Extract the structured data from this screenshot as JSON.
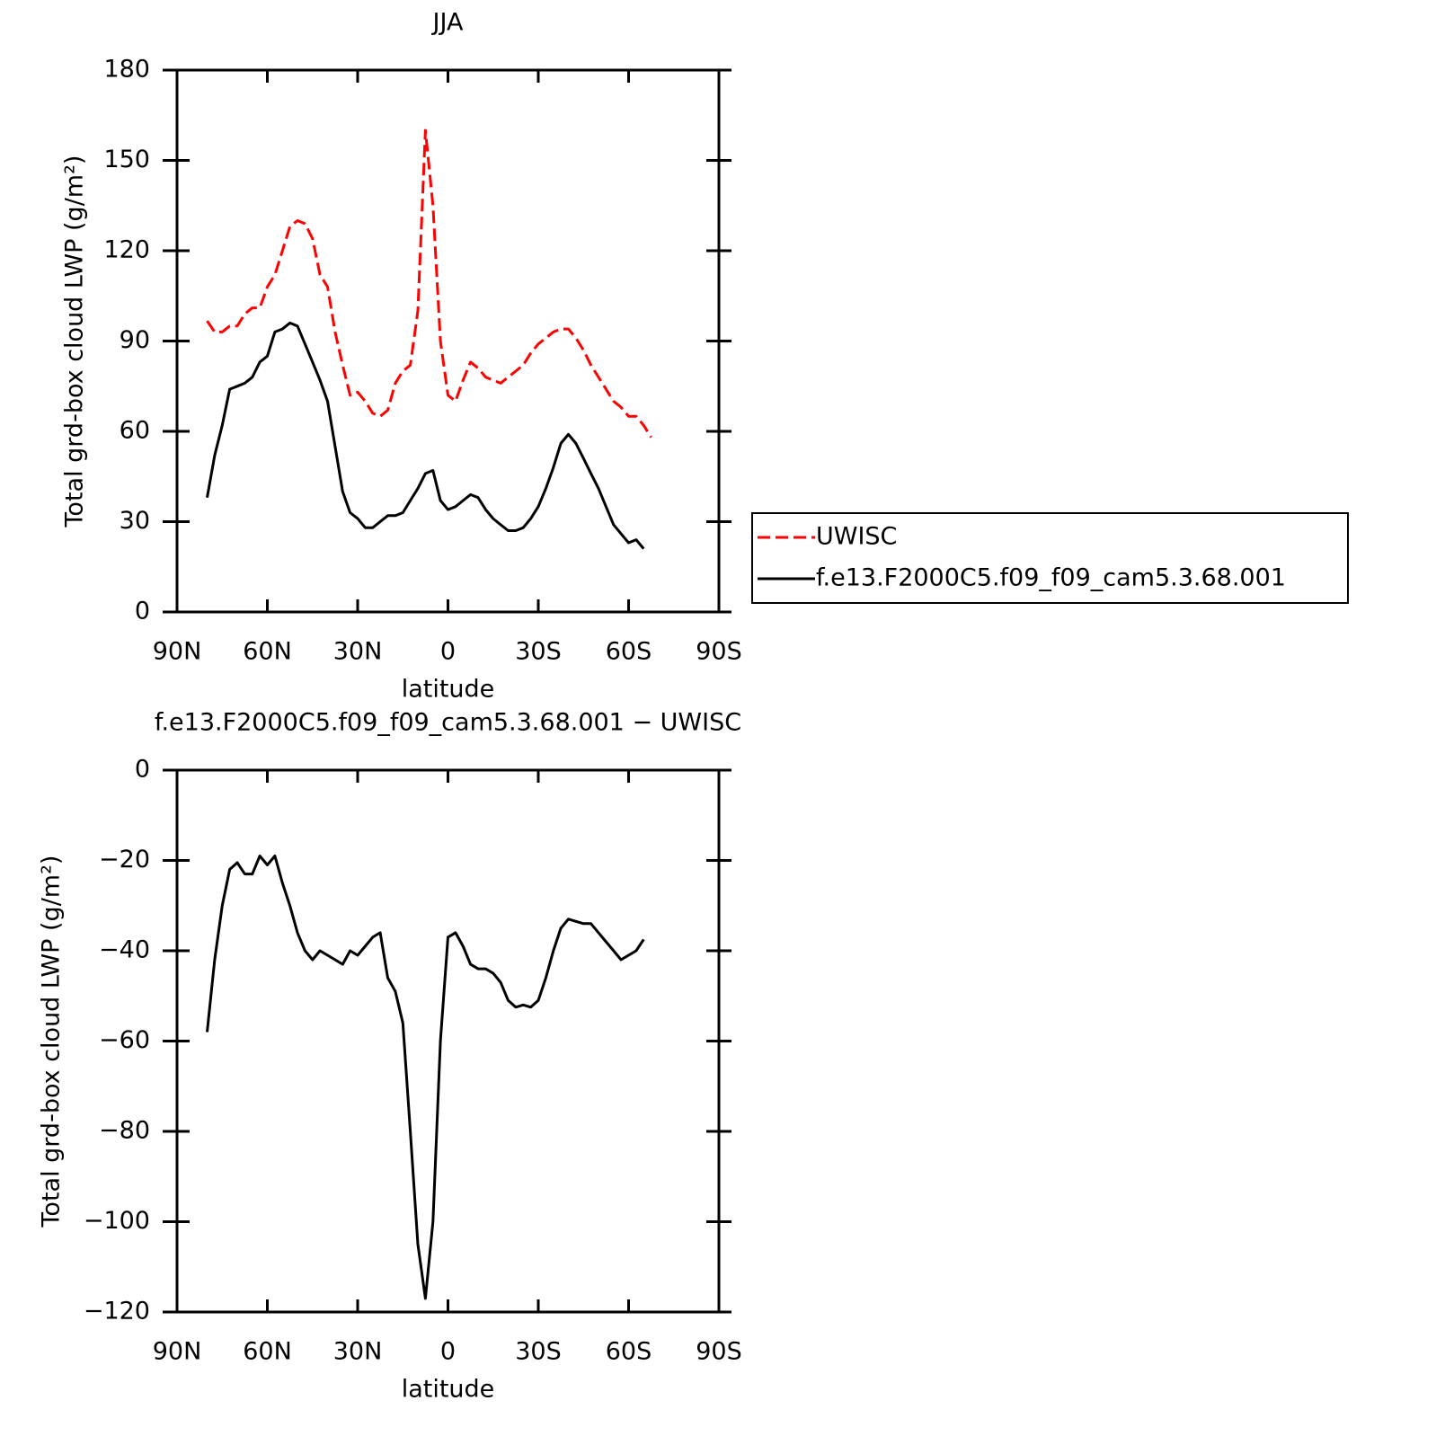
{
  "chart_data": [
    {
      "type": "line",
      "title": "JJA",
      "xlabel": "latitude",
      "ylabel": "Total grd-box cloud LWP (g/m²)",
      "x": [
        80,
        77.5,
        75,
        72.5,
        70,
        67.5,
        65,
        62.5,
        60,
        57.5,
        55,
        52.5,
        50,
        47.5,
        45,
        42.5,
        40,
        37.5,
        35,
        32.5,
        30,
        27.5,
        25,
        22.5,
        20,
        17.5,
        15,
        12.5,
        10,
        7.5,
        5,
        2.5,
        0,
        -2.5,
        -5,
        -7.5,
        -10,
        -12.5,
        -15,
        -17.5,
        -20,
        -22.5,
        -25,
        -27.5,
        -30,
        -32.5,
        -35,
        -37.5,
        -40,
        -42.5,
        -45,
        -47.5,
        -50,
        -52.5,
        -55,
        -57.5,
        -60,
        -62.5,
        -65,
        -67.5
      ],
      "series": [
        {
          "name": "UWISC",
          "color": "#ff0000",
          "dashed": true,
          "values": [
            96.7,
            93,
            93,
            95,
            95,
            99,
            101,
            101,
            108,
            112,
            120,
            128,
            130,
            129,
            124,
            112,
            108,
            93,
            82,
            72,
            73,
            70,
            66,
            65,
            67,
            76,
            80,
            82,
            100,
            160,
            135,
            90,
            72,
            70,
            77,
            83,
            81,
            78,
            77,
            76,
            78,
            80,
            82,
            86,
            89,
            91,
            93,
            94,
            94,
            91,
            87,
            82,
            78,
            74,
            70,
            68,
            65,
            65,
            62,
            58
          ]
        },
        {
          "name": "f.e13.F2000C5.f09_f09_cam5.3.68.001",
          "color": "#000000",
          "dashed": false,
          "values": [
            38,
            52,
            62,
            74,
            75,
            76,
            78,
            83,
            85,
            93,
            94,
            96,
            95,
            89,
            83,
            77,
            70,
            55,
            40,
            33,
            31,
            28,
            28,
            30,
            32,
            32,
            33,
            37,
            41,
            46,
            47,
            37,
            34,
            35,
            37,
            39,
            38,
            34,
            31,
            29,
            27,
            27,
            28,
            31,
            35,
            41,
            48,
            56,
            59,
            56,
            51,
            46,
            41,
            35,
            29,
            26,
            23,
            24,
            21,
            null
          ]
        }
      ],
      "xlim": [
        90,
        -90
      ],
      "xticks": [
        {
          "value": 90,
          "label": "90N"
        },
        {
          "value": 60,
          "label": "60N"
        },
        {
          "value": 30,
          "label": "30N"
        },
        0,
        {
          "value": -30,
          "label": "30S"
        },
        {
          "value": -60,
          "label": "60S"
        },
        {
          "value": -90,
          "label": "90S"
        }
      ],
      "ylim": [
        0,
        180
      ],
      "yticks": [
        0,
        30,
        60,
        90,
        120,
        150,
        180
      ],
      "legend": "right"
    },
    {
      "type": "line",
      "title": "f.e13.F2000C5.f09_f09_cam5.3.68.001 − UWISC",
      "xlabel": "latitude",
      "ylabel": "Total grd-box cloud LWP (g/m²)",
      "x": [
        80,
        77.5,
        75,
        72.5,
        70,
        67.5,
        65,
        62.5,
        60,
        57.5,
        55,
        52.5,
        50,
        47.5,
        45,
        42.5,
        40,
        37.5,
        35,
        32.5,
        30,
        27.5,
        25,
        22.5,
        20,
        17.5,
        15,
        12.5,
        10,
        7.5,
        5,
        2.5,
        0,
        -2.5,
        -5,
        -7.5,
        -10,
        -12.5,
        -15,
        -17.5,
        -20,
        -22.5,
        -25,
        -27.5,
        -30,
        -32.5,
        -35,
        -37.5,
        -40,
        -42.5,
        -45,
        -47.5,
        -50,
        -52.5,
        -55,
        -57.5,
        -60,
        -62.5,
        -65,
        -67.5
      ],
      "series": [
        {
          "color": "#000000",
          "dashed": false,
          "values": [
            -58,
            -42,
            -30,
            -22,
            -20.5,
            -23,
            -23,
            -19,
            -21,
            -19,
            -25,
            -30,
            -36,
            -40,
            -42,
            -40,
            -41,
            -42,
            -43,
            -40,
            -41,
            -39,
            -37,
            -36,
            -46,
            -49,
            -56,
            -80,
            -105,
            -117,
            -100,
            -60,
            -37,
            -36,
            -39,
            -43,
            -44,
            -44,
            -45,
            -47,
            -51,
            -52.5,
            -52,
            -52.5,
            -51,
            -46,
            -40,
            -35,
            -33,
            -33.5,
            -34,
            -34,
            -36,
            -38,
            -40,
            -42,
            -41,
            -40,
            -37.5,
            null
          ]
        }
      ],
      "xlim": [
        90,
        -90
      ],
      "xticks": [
        {
          "value": 90,
          "label": "90N"
        },
        {
          "value": 60,
          "label": "60N"
        },
        {
          "value": 30,
          "label": "30N"
        },
        0,
        {
          "value": -30,
          "label": "30S"
        },
        {
          "value": -60,
          "label": "60S"
        },
        {
          "value": -90,
          "label": "90S"
        }
      ],
      "ylim": [
        -120,
        0
      ],
      "yticks": [
        {
          "value": -120,
          "label": "−120"
        },
        {
          "value": -100,
          "label": "−100"
        },
        {
          "value": -80,
          "label": "−80"
        },
        {
          "value": -60,
          "label": "−60"
        },
        {
          "value": -40,
          "label": "−40"
        },
        {
          "value": -20,
          "label": "−20"
        },
        0
      ]
    }
  ]
}
